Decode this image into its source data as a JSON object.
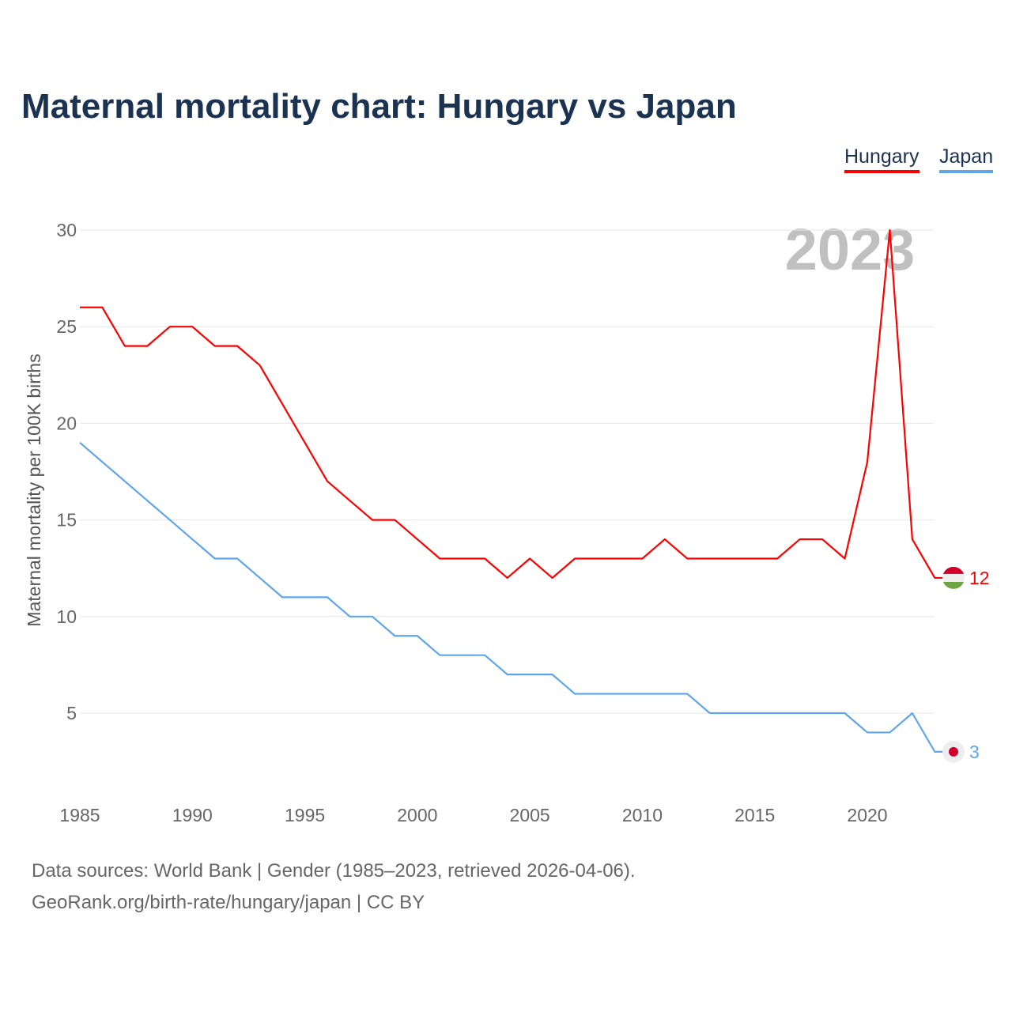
{
  "chart_data": {
    "type": "line",
    "title": "Maternal mortality chart: Hungary vs Japan",
    "ylabel": "Maternal mortality per 100K births",
    "xlabel": "",
    "year_label": "2023",
    "ylim": [
      0,
      30
    ],
    "xlim": [
      1985,
      2023
    ],
    "yticks": [
      5,
      10,
      15,
      20,
      25,
      30
    ],
    "xticks": [
      1985,
      1990,
      1995,
      2000,
      2005,
      2010,
      2015,
      2020
    ],
    "grid": true,
    "legend_position": "top-right",
    "x": [
      1985,
      1986,
      1987,
      1988,
      1989,
      1990,
      1991,
      1992,
      1993,
      1994,
      1995,
      1996,
      1997,
      1998,
      1999,
      2000,
      2001,
      2002,
      2003,
      2004,
      2005,
      2006,
      2007,
      2008,
      2009,
      2010,
      2011,
      2012,
      2013,
      2014,
      2015,
      2016,
      2017,
      2018,
      2019,
      2020,
      2021,
      2022,
      2023
    ],
    "series": [
      {
        "name": "Hungary",
        "color": "#ff0000",
        "end_label": "12",
        "values": [
          26,
          26,
          24,
          24,
          25,
          25,
          24,
          24,
          23,
          21,
          19,
          17,
          16,
          15,
          15,
          14,
          13,
          13,
          13,
          12,
          13,
          12,
          13,
          13,
          13,
          13,
          14,
          13,
          13,
          13,
          13,
          13,
          14,
          14,
          13,
          18,
          30,
          14,
          12
        ]
      },
      {
        "name": "Japan",
        "color": "#5ea5ec",
        "end_label": "3",
        "values": [
          19,
          18,
          17,
          16,
          15,
          14,
          13,
          13,
          12,
          11,
          11,
          11,
          10,
          10,
          9,
          9,
          8,
          8,
          8,
          7,
          7,
          7,
          6,
          6,
          6,
          6,
          6,
          6,
          5,
          5,
          5,
          5,
          5,
          5,
          5,
          4,
          4,
          5,
          3
        ]
      }
    ]
  },
  "footer": {
    "line1": "Data sources: World Bank | Gender (1985–2023, retrieved 2026-04-06).",
    "line2": "GeoRank.org/birth-rate/hungary/japan | CC BY"
  }
}
